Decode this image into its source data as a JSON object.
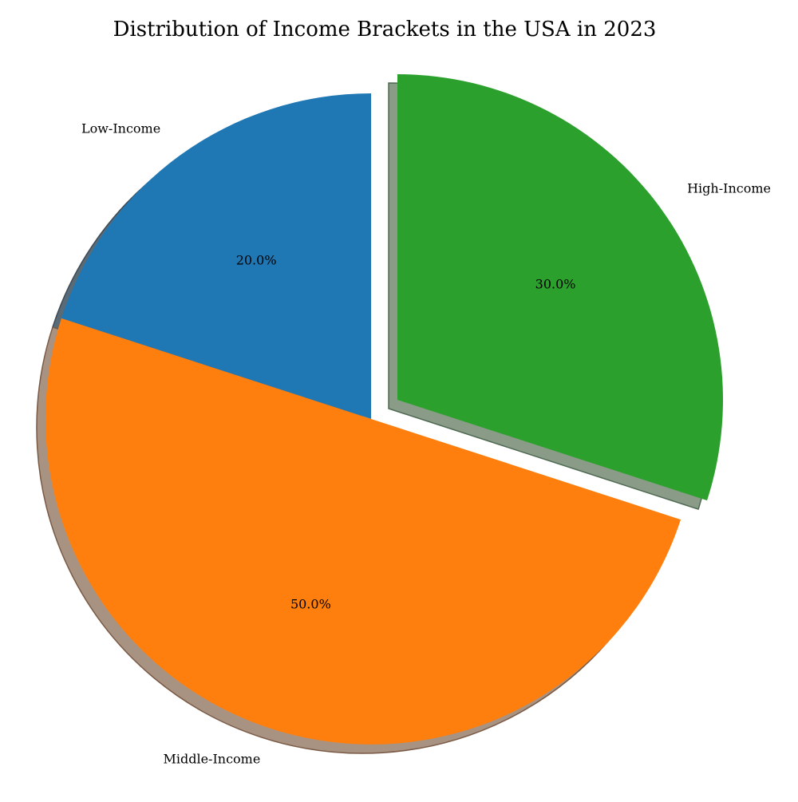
{
  "chart_data": {
    "type": "pie",
    "title": "Distribution of Income Brackets in the USA in 2023",
    "categories": [
      "Low-Income",
      "Middle-Income",
      "High-Income"
    ],
    "values": [
      20,
      50,
      30
    ],
    "percent_labels": [
      "20.0%",
      "50.0%",
      "30.0%"
    ],
    "colors": [
      "#1f77b4",
      "#ff7f0e",
      "#2ca02c"
    ],
    "exploded": [
      false,
      false,
      true
    ],
    "shadow": true,
    "start_angle_deg": 90,
    "direction": "counterclockwise"
  }
}
